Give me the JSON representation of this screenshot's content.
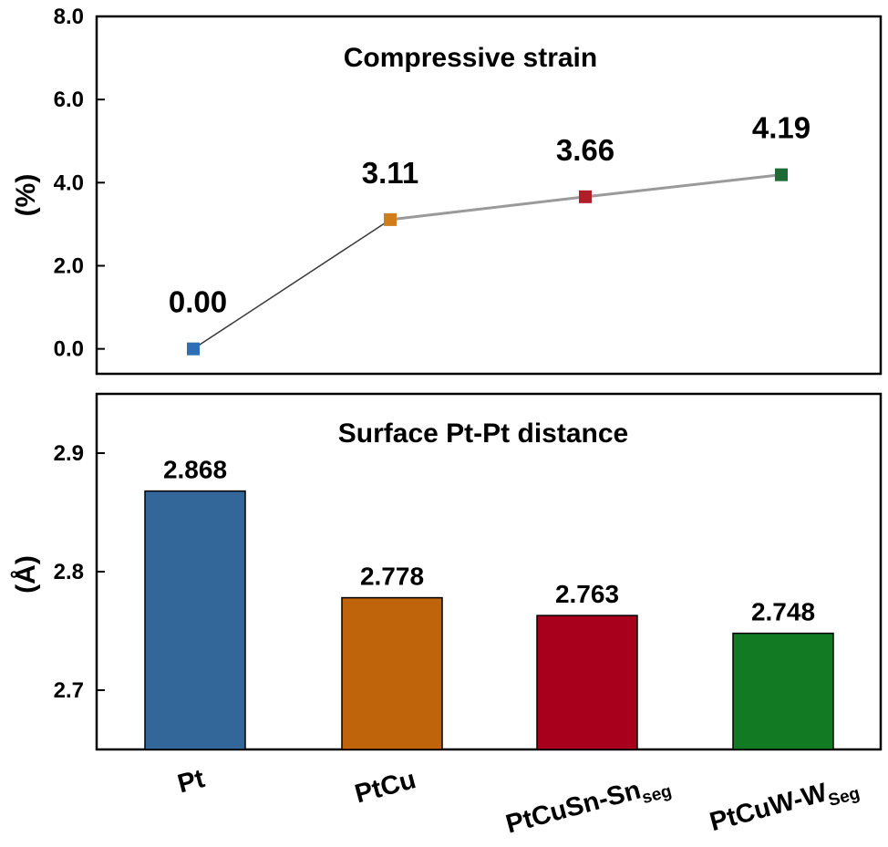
{
  "chart_data": [
    {
      "type": "line",
      "title": "Compressive strain",
      "ylabel": "(%)",
      "ylim": [
        -0.6,
        8.0
      ],
      "yticks": [
        "0.0",
        "2.0",
        "4.0",
        "6.0",
        "8.0"
      ],
      "categories": [
        "Pt",
        "PtCu",
        "PtCuSn-Sn_seg",
        "PtCuW-W_Seg"
      ],
      "values": [
        0.0,
        3.11,
        3.66,
        4.19
      ],
      "data_labels": [
        "0.00",
        "3.11",
        "3.66",
        "4.19"
      ],
      "marker_colors": [
        "#2e6eb5",
        "#d07e1c",
        "#b01e2a",
        "#1f6b35"
      ],
      "line_colors": [
        "#3a3a3a",
        "#9a9a9a",
        "#9a9a9a"
      ],
      "grid": false
    },
    {
      "type": "bar",
      "title": "Surface Pt-Pt distance",
      "ylabel": "(Å)",
      "ylim": [
        2.65,
        2.95
      ],
      "yticks": [
        "2.7",
        "2.8",
        "2.9"
      ],
      "categories": [
        {
          "main": "Pt",
          "sub": ""
        },
        {
          "main": "PtCu",
          "sub": ""
        },
        {
          "main": "PtCuSn-Sn",
          "sub": "seg"
        },
        {
          "main": "PtCuW-W",
          "sub": "Seg"
        }
      ],
      "values": [
        2.868,
        2.778,
        2.763,
        2.748
      ],
      "data_labels": [
        "2.868",
        "2.778",
        "2.763",
        "2.748"
      ],
      "bar_colors": [
        "#336699",
        "#c0640c",
        "#a8001c",
        "#137a24"
      ],
      "grid": false
    }
  ]
}
